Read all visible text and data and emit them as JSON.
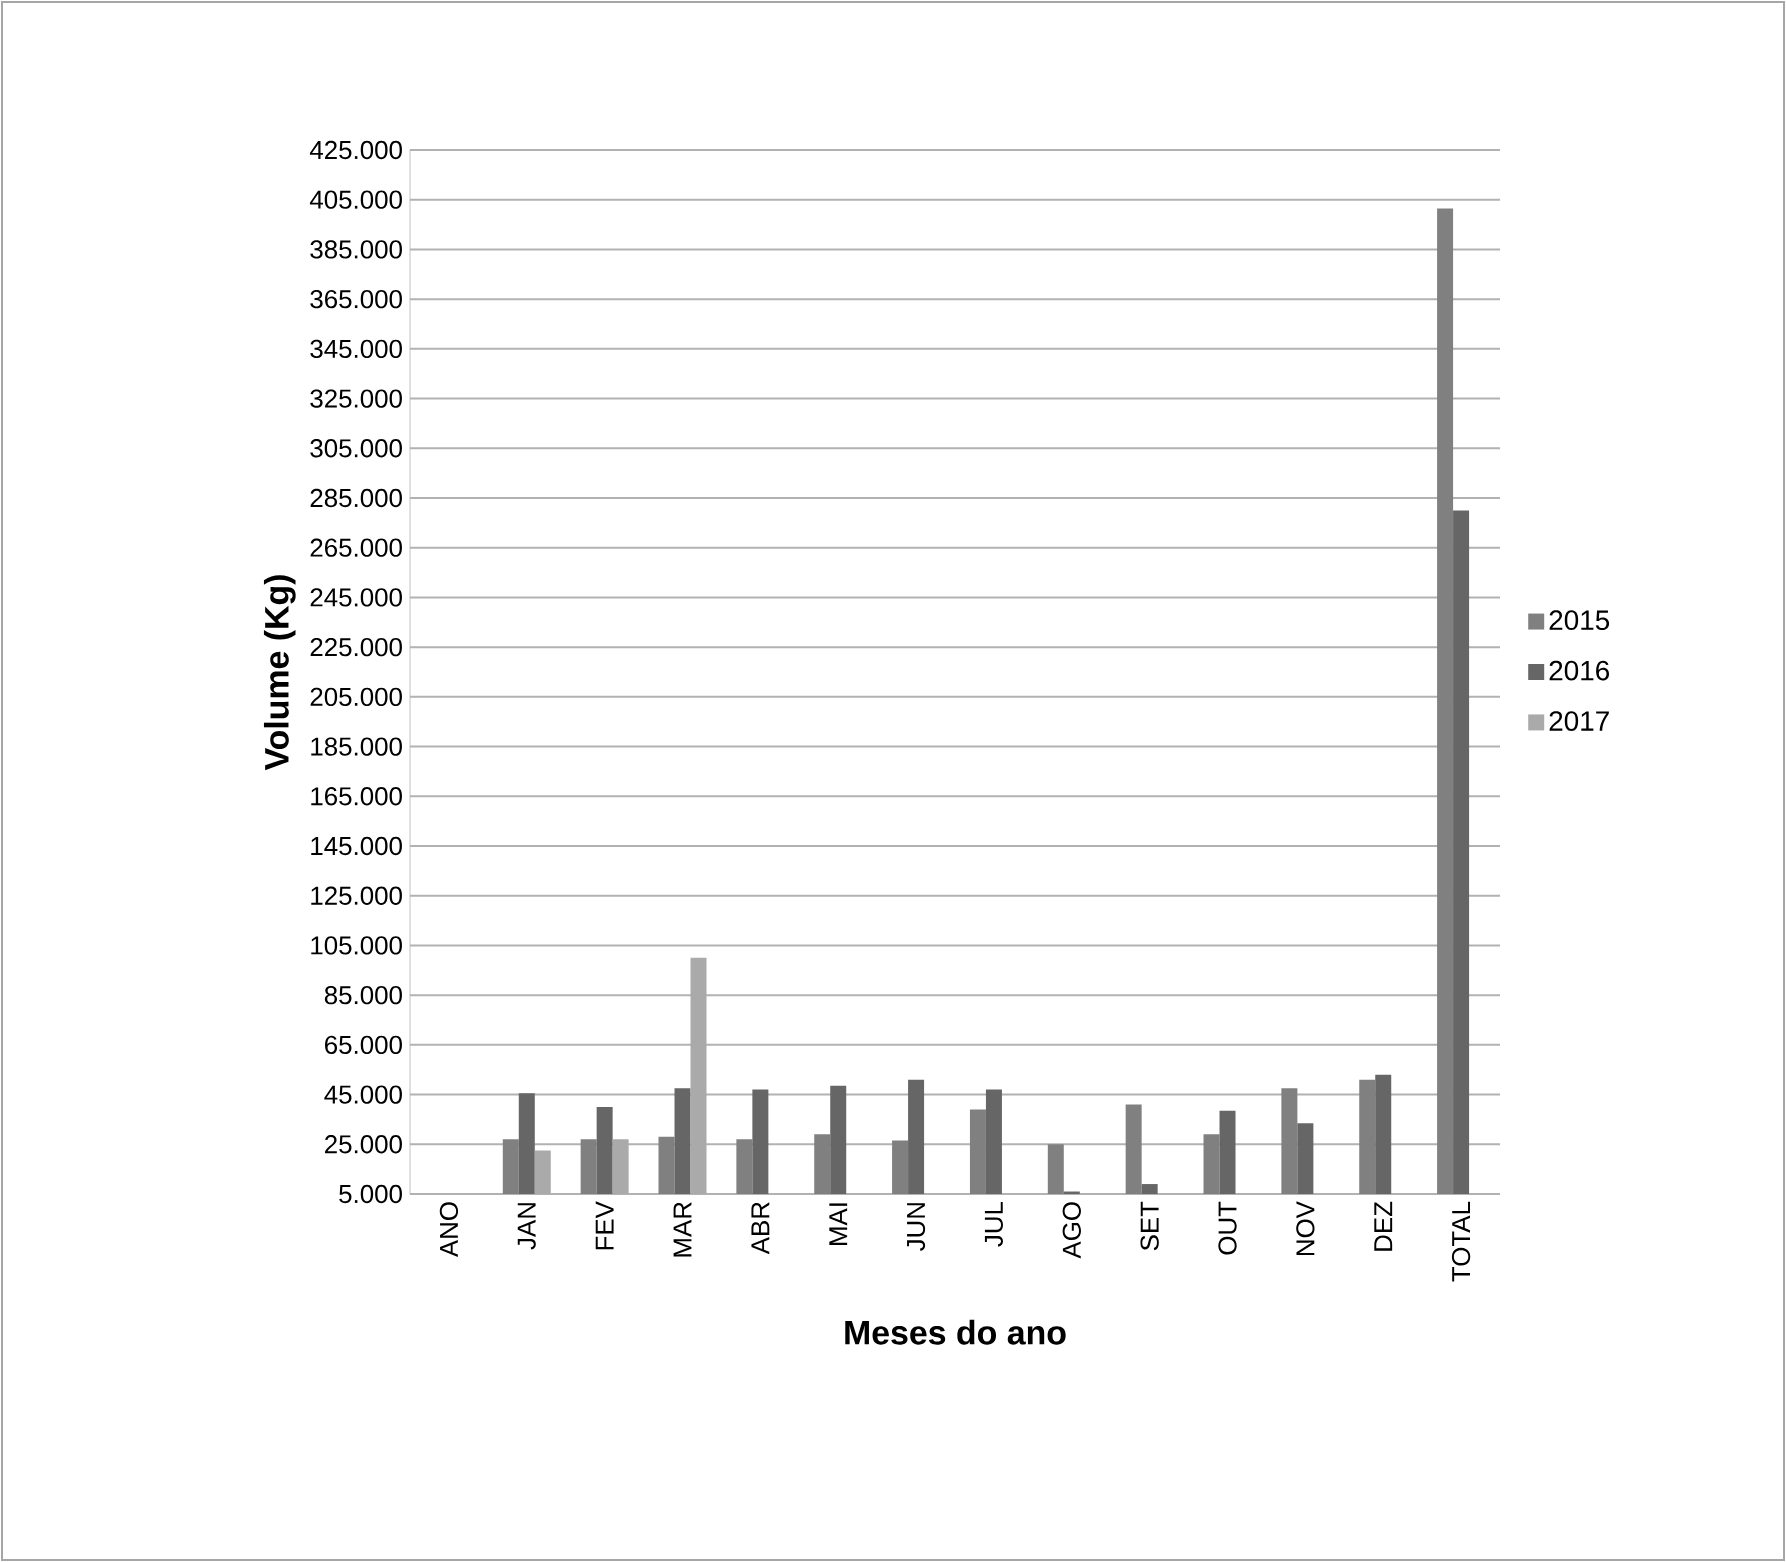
{
  "chart_data": {
    "type": "bar",
    "xlabel": "Meses do ano",
    "ylabel": "Volume (Kg)",
    "categories": [
      "ANO",
      "JAN",
      "FEV",
      "MAR",
      "ABR",
      "MAI",
      "JUN",
      "JUL",
      "AGO",
      "SET",
      "OUT",
      "NOV",
      "DEZ",
      "TOTAL"
    ],
    "series": [
      {
        "name": "2015",
        "color": "#808080",
        "values": [
          null,
          27000,
          27000,
          28000,
          27000,
          29000,
          26500,
          39000,
          25000,
          41000,
          29000,
          47500,
          51000,
          401500
        ]
      },
      {
        "name": "2016",
        "color": "#666666",
        "values": [
          null,
          45500,
          40000,
          47500,
          47000,
          48500,
          51000,
          47000,
          6000,
          9000,
          38500,
          33500,
          53000,
          280000
        ]
      },
      {
        "name": "2017",
        "color": "#aaaaaa",
        "values": [
          null,
          22500,
          27000,
          100000,
          null,
          null,
          null,
          null,
          null,
          null,
          null,
          null,
          null,
          null
        ]
      }
    ],
    "ylim": [
      5000,
      425000
    ],
    "yticks": [
      {
        "value": 5000,
        "label": "5.000"
      },
      {
        "value": 25000,
        "label": "25.000"
      },
      {
        "value": 45000,
        "label": "45.000"
      },
      {
        "value": 65000,
        "label": "65.000"
      },
      {
        "value": 85000,
        "label": "85.000"
      },
      {
        "value": 105000,
        "label": "105.000"
      },
      {
        "value": 125000,
        "label": "125.000"
      },
      {
        "value": 145000,
        "label": "145.000"
      },
      {
        "value": 165000,
        "label": "165.000"
      },
      {
        "value": 185000,
        "label": "185.000"
      },
      {
        "value": 205000,
        "label": "205.000"
      },
      {
        "value": 225000,
        "label": "225.000"
      },
      {
        "value": 245000,
        "label": "245.000"
      },
      {
        "value": 265000,
        "label": "265.000"
      },
      {
        "value": 285000,
        "label": "285.000"
      },
      {
        "value": 305000,
        "label": "305.000"
      },
      {
        "value": 325000,
        "label": "325.000"
      },
      {
        "value": 345000,
        "label": "345.000"
      },
      {
        "value": 365000,
        "label": "365.000"
      },
      {
        "value": 385000,
        "label": "385.000"
      },
      {
        "value": 405000,
        "label": "405.000"
      },
      {
        "value": 425000,
        "label": "425.000"
      }
    ],
    "grid": "y",
    "legend": "right"
  }
}
